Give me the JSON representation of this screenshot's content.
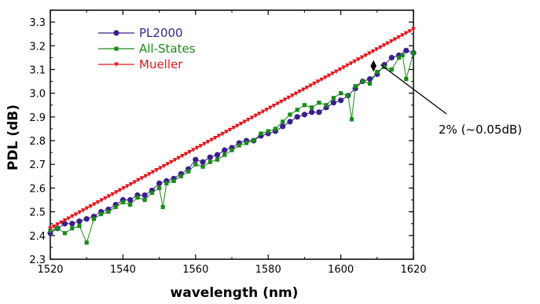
{
  "chart_data": {
    "type": "line",
    "xlabel": "wavelength (nm)",
    "ylabel": "PDL (dB)",
    "xlim": [
      1520,
      1620
    ],
    "ylim": [
      2.3,
      3.35
    ],
    "x_ticks": [
      "1520",
      "1540",
      "1560",
      "1580",
      "1600",
      "1620"
    ],
    "y_ticks": [
      "2.3",
      "2.4",
      "2.5",
      "2.6",
      "2.7",
      "2.8",
      "2.9",
      "3.0",
      "3.1",
      "3.2",
      "3.3"
    ],
    "grid": false,
    "legend_position": "top-left",
    "series": [
      {
        "name": "PL2000",
        "color": "#3b1f8c",
        "marker": "circle",
        "x": [
          1520,
          1522,
          1524,
          1526,
          1528,
          1530,
          1532,
          1534,
          1536,
          1538,
          1540,
          1542,
          1544,
          1546,
          1548,
          1550,
          1552,
          1554,
          1556,
          1558,
          1560,
          1562,
          1564,
          1566,
          1568,
          1570,
          1572,
          1574,
          1576,
          1578,
          1580,
          1582,
          1584,
          1586,
          1588,
          1590,
          1592,
          1594,
          1596,
          1598,
          1600,
          1602,
          1604,
          1606,
          1608,
          1610,
          1612,
          1614,
          1616,
          1618,
          1620
        ],
        "y": [
          2.41,
          2.43,
          2.45,
          2.45,
          2.46,
          2.47,
          2.48,
          2.5,
          2.51,
          2.53,
          2.55,
          2.55,
          2.57,
          2.57,
          2.59,
          2.62,
          2.63,
          2.64,
          2.66,
          2.68,
          2.72,
          2.71,
          2.73,
          2.74,
          2.76,
          2.77,
          2.79,
          2.8,
          2.8,
          2.82,
          2.83,
          2.84,
          2.86,
          2.88,
          2.9,
          2.91,
          2.92,
          2.92,
          2.94,
          2.96,
          2.97,
          2.99,
          3.02,
          3.05,
          3.06,
          3.08,
          3.12,
          3.15,
          3.16,
          3.18,
          3.17
        ]
      },
      {
        "name": "All-States",
        "color": "#1a8a1a",
        "marker": "square",
        "x": [
          1520,
          1522,
          1524,
          1526,
          1528,
          1530,
          1532,
          1534,
          1536,
          1538,
          1540,
          1542,
          1544,
          1546,
          1548,
          1550,
          1551,
          1552,
          1554,
          1556,
          1558,
          1560,
          1562,
          1564,
          1566,
          1568,
          1570,
          1572,
          1574,
          1576,
          1578,
          1580,
          1582,
          1584,
          1586,
          1588,
          1590,
          1592,
          1594,
          1596,
          1598,
          1600,
          1602,
          1603,
          1604,
          1606,
          1608,
          1610,
          1612,
          1614,
          1616,
          1617,
          1618,
          1620
        ],
        "y": [
          2.42,
          2.43,
          2.41,
          2.43,
          2.44,
          2.37,
          2.47,
          2.49,
          2.5,
          2.52,
          2.54,
          2.53,
          2.56,
          2.55,
          2.58,
          2.6,
          2.52,
          2.62,
          2.63,
          2.65,
          2.67,
          2.7,
          2.69,
          2.71,
          2.72,
          2.74,
          2.76,
          2.78,
          2.79,
          2.8,
          2.83,
          2.84,
          2.85,
          2.88,
          2.91,
          2.93,
          2.95,
          2.94,
          2.96,
          2.95,
          2.98,
          3.0,
          2.99,
          2.89,
          3.03,
          3.05,
          3.04,
          3.09,
          3.11,
          3.1,
          3.15,
          3.16,
          3.06,
          3.17
        ]
      },
      {
        "name": "Mueller",
        "color": "#e3161d",
        "marker": "triangle-down",
        "x_start": 1520,
        "x_end": 1620,
        "y_start": 2.43,
        "y_end": 3.27,
        "points": 100
      }
    ],
    "annotations": [
      {
        "text": "2% (~0.05dB)",
        "arrow_x": 1609,
        "arrow_y_low": 3.09,
        "arrow_y_high": 3.14,
        "leader_from_x": 1611,
        "leader_from_y": 3.12
      }
    ]
  }
}
